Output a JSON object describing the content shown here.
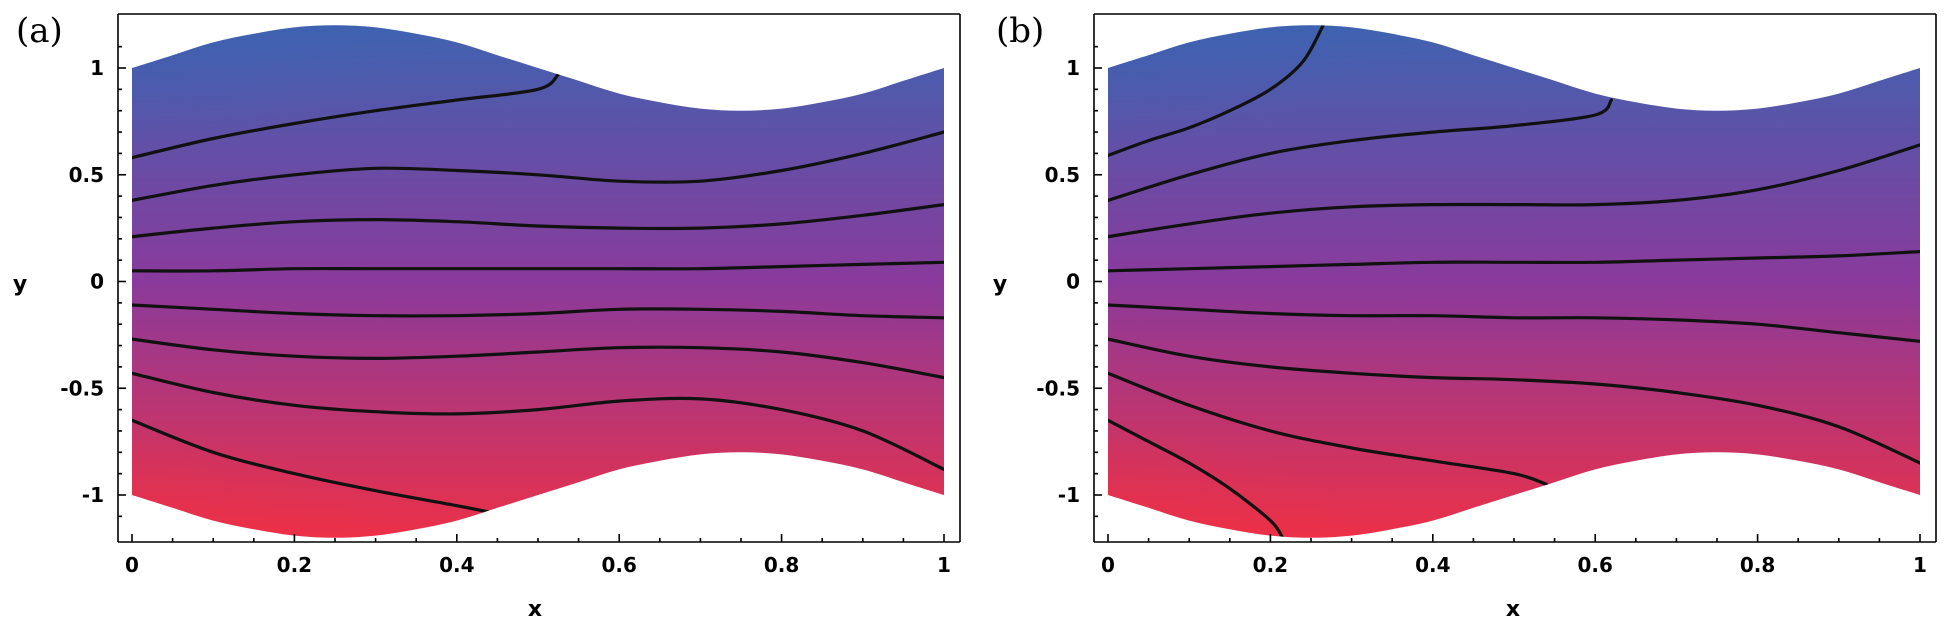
{
  "chart_data": [
    {
      "type": "contour",
      "panel_label": "(a)",
      "xlabel": "x",
      "ylabel": "y",
      "xlim": [
        0,
        1
      ],
      "ylim": [
        -1.2,
        1.2
      ],
      "x_ticks": [
        0,
        0.2,
        0.4,
        0.6,
        0.8,
        1
      ],
      "x_tick_labels": [
        "0",
        "0.2",
        "0.4",
        "0.6",
        "0.8",
        "1"
      ],
      "y_ticks": [
        1,
        0.5,
        0,
        -0.5,
        -1
      ],
      "y_tick_labels": [
        "1",
        "0.5",
        "0",
        "-0.5",
        "-1"
      ],
      "walls": {
        "upper": {
          "x": [
            0,
            0.05,
            0.1,
            0.15,
            0.2,
            0.25,
            0.3,
            0.35,
            0.4,
            0.45,
            0.5,
            0.55,
            0.6,
            0.65,
            0.7,
            0.75,
            0.8,
            0.85,
            0.9,
            0.95,
            1.0
          ],
          "y": [
            1.0,
            1.06,
            1.12,
            1.16,
            1.19,
            1.2,
            1.19,
            1.16,
            1.12,
            1.06,
            1.0,
            0.94,
            0.88,
            0.84,
            0.81,
            0.8,
            0.81,
            0.84,
            0.88,
            0.94,
            1.0
          ]
        },
        "lower": {
          "x": [
            0,
            0.05,
            0.1,
            0.15,
            0.2,
            0.25,
            0.3,
            0.35,
            0.4,
            0.45,
            0.5,
            0.55,
            0.6,
            0.65,
            0.7,
            0.75,
            0.8,
            0.85,
            0.9,
            0.95,
            1.0
          ],
          "y": [
            -1.0,
            -1.06,
            -1.12,
            -1.16,
            -1.19,
            -1.2,
            -1.19,
            -1.16,
            -1.12,
            -1.06,
            -1.0,
            -0.94,
            -0.88,
            -0.84,
            -0.81,
            -0.8,
            -0.81,
            -0.84,
            -0.88,
            -0.94,
            -1.0
          ]
        }
      },
      "colormap": {
        "top": "#3f63b0",
        "middle": "#8a3a9c",
        "bottom": "#ec3048"
      },
      "contours": [
        {
          "x": [
            0,
            0.1,
            0.2,
            0.3,
            0.4,
            0.5,
            0.525
          ],
          "y": [
            0.58,
            0.67,
            0.74,
            0.8,
            0.85,
            0.9,
            0.97
          ]
        },
        {
          "x": [
            0,
            0.1,
            0.2,
            0.3,
            0.4,
            0.5,
            0.6,
            0.7,
            0.8,
            0.9,
            1.0
          ],
          "y": [
            0.38,
            0.45,
            0.5,
            0.53,
            0.52,
            0.5,
            0.47,
            0.47,
            0.52,
            0.6,
            0.7
          ]
        },
        {
          "x": [
            0,
            0.1,
            0.2,
            0.3,
            0.4,
            0.5,
            0.6,
            0.7,
            0.8,
            0.9,
            1.0
          ],
          "y": [
            0.21,
            0.25,
            0.28,
            0.29,
            0.28,
            0.26,
            0.25,
            0.25,
            0.27,
            0.31,
            0.36
          ]
        },
        {
          "x": [
            0,
            0.1,
            0.2,
            0.3,
            0.4,
            0.5,
            0.6,
            0.7,
            0.8,
            0.9,
            1.0
          ],
          "y": [
            0.05,
            0.05,
            0.06,
            0.06,
            0.06,
            0.06,
            0.06,
            0.06,
            0.07,
            0.08,
            0.09
          ]
        },
        {
          "x": [
            0,
            0.1,
            0.2,
            0.3,
            0.4,
            0.5,
            0.6,
            0.7,
            0.8,
            0.9,
            1.0
          ],
          "y": [
            -0.11,
            -0.13,
            -0.15,
            -0.16,
            -0.16,
            -0.15,
            -0.13,
            -0.13,
            -0.14,
            -0.16,
            -0.17
          ]
        },
        {
          "x": [
            0,
            0.1,
            0.2,
            0.3,
            0.4,
            0.5,
            0.6,
            0.7,
            0.8,
            0.9,
            1.0
          ],
          "y": [
            -0.27,
            -0.32,
            -0.35,
            -0.36,
            -0.35,
            -0.33,
            -0.31,
            -0.31,
            -0.33,
            -0.38,
            -0.45
          ]
        },
        {
          "x": [
            0,
            0.1,
            0.2,
            0.3,
            0.4,
            0.5,
            0.6,
            0.7,
            0.8,
            0.9,
            1.0
          ],
          "y": [
            -0.43,
            -0.52,
            -0.58,
            -0.61,
            -0.62,
            -0.6,
            -0.56,
            -0.55,
            -0.6,
            -0.7,
            -0.88
          ]
        },
        {
          "x": [
            0,
            0.1,
            0.2,
            0.3,
            0.4,
            0.44
          ],
          "y": [
            -0.65,
            -0.8,
            -0.9,
            -0.98,
            -1.05,
            -1.08
          ]
        }
      ]
    },
    {
      "type": "contour",
      "panel_label": "(b)",
      "xlabel": "x",
      "ylabel": "y",
      "xlim": [
        0,
        1
      ],
      "ylim": [
        -1.2,
        1.2
      ],
      "x_ticks": [
        0,
        0.2,
        0.4,
        0.6,
        0.8,
        1
      ],
      "x_tick_labels": [
        "0",
        "0.2",
        "0.4",
        "0.6",
        "0.8",
        "1"
      ],
      "y_ticks": [
        1,
        0.5,
        0,
        -0.5,
        -1
      ],
      "y_tick_labels": [
        "1",
        "0.5",
        "0",
        "-0.5",
        "-1"
      ],
      "walls": {
        "upper": {
          "x": [
            0,
            0.05,
            0.1,
            0.15,
            0.2,
            0.25,
            0.3,
            0.35,
            0.4,
            0.45,
            0.5,
            0.55,
            0.6,
            0.65,
            0.7,
            0.75,
            0.8,
            0.85,
            0.9,
            0.95,
            1.0
          ],
          "y": [
            1.0,
            1.06,
            1.12,
            1.16,
            1.19,
            1.2,
            1.19,
            1.16,
            1.12,
            1.06,
            1.0,
            0.94,
            0.88,
            0.84,
            0.81,
            0.8,
            0.81,
            0.84,
            0.88,
            0.94,
            1.0
          ]
        },
        "lower": {
          "x": [
            0,
            0.05,
            0.1,
            0.15,
            0.2,
            0.25,
            0.3,
            0.35,
            0.4,
            0.45,
            0.5,
            0.55,
            0.6,
            0.65,
            0.7,
            0.75,
            0.8,
            0.85,
            0.9,
            0.95,
            1.0
          ],
          "y": [
            -1.0,
            -1.06,
            -1.12,
            -1.16,
            -1.19,
            -1.2,
            -1.19,
            -1.16,
            -1.12,
            -1.06,
            -1.0,
            -0.94,
            -0.88,
            -0.84,
            -0.81,
            -0.8,
            -0.81,
            -0.84,
            -0.88,
            -0.94,
            -1.0
          ]
        }
      },
      "colormap": {
        "top": "#3f63b0",
        "middle": "#8a3a9c",
        "bottom": "#ec3048"
      },
      "contours": [
        {
          "x": [
            0,
            0.05,
            0.1,
            0.15,
            0.2,
            0.24,
            0.265
          ],
          "y": [
            0.59,
            0.66,
            0.72,
            0.8,
            0.9,
            1.03,
            1.2
          ]
        },
        {
          "x": [
            0,
            0.1,
            0.2,
            0.3,
            0.4,
            0.5,
            0.6,
            0.62
          ],
          "y": [
            0.38,
            0.5,
            0.6,
            0.66,
            0.7,
            0.73,
            0.78,
            0.85
          ]
        },
        {
          "x": [
            0,
            0.1,
            0.2,
            0.3,
            0.4,
            0.5,
            0.6,
            0.7,
            0.8,
            0.9,
            1.0
          ],
          "y": [
            0.21,
            0.27,
            0.32,
            0.35,
            0.36,
            0.36,
            0.36,
            0.38,
            0.43,
            0.52,
            0.64
          ]
        },
        {
          "x": [
            0,
            0.1,
            0.2,
            0.3,
            0.4,
            0.5,
            0.6,
            0.7,
            0.8,
            0.9,
            1.0
          ],
          "y": [
            0.05,
            0.06,
            0.07,
            0.08,
            0.09,
            0.09,
            0.09,
            0.1,
            0.11,
            0.12,
            0.14
          ]
        },
        {
          "x": [
            0,
            0.1,
            0.2,
            0.3,
            0.4,
            0.5,
            0.6,
            0.7,
            0.8,
            0.9,
            1.0
          ],
          "y": [
            -0.11,
            -0.13,
            -0.15,
            -0.16,
            -0.16,
            -0.17,
            -0.17,
            -0.18,
            -0.2,
            -0.24,
            -0.28
          ]
        },
        {
          "x": [
            0,
            0.1,
            0.2,
            0.3,
            0.4,
            0.5,
            0.6,
            0.7,
            0.8,
            0.9,
            1.0
          ],
          "y": [
            -0.27,
            -0.35,
            -0.4,
            -0.43,
            -0.45,
            -0.46,
            -0.48,
            -0.52,
            -0.58,
            -0.68,
            -0.85
          ]
        },
        {
          "x": [
            0,
            0.1,
            0.2,
            0.3,
            0.4,
            0.5,
            0.54
          ],
          "y": [
            -0.43,
            -0.58,
            -0.7,
            -0.78,
            -0.84,
            -0.9,
            -0.95
          ]
        },
        {
          "x": [
            0,
            0.05,
            0.1,
            0.15,
            0.2,
            0.215
          ],
          "y": [
            -0.65,
            -0.75,
            -0.85,
            -0.97,
            -1.12,
            -1.2
          ]
        }
      ]
    }
  ]
}
